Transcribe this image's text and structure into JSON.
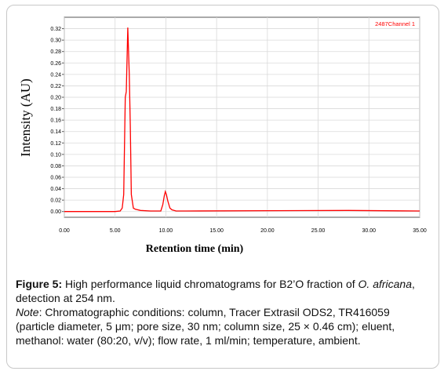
{
  "chart_data": {
    "type": "line",
    "xlabel": "Retention time (min)",
    "ylabel": "Intensity (AU)",
    "xlim": [
      0,
      35
    ],
    "ylim": [
      -0.01,
      0.34
    ],
    "x_ticks": [
      "0.00",
      "5.00",
      "10.00",
      "15.00",
      "20.00",
      "25.00",
      "30.00",
      "35.00"
    ],
    "x_tick_values": [
      0,
      5,
      10,
      15,
      20,
      25,
      30,
      35
    ],
    "y_ticks": [
      "0.00",
      "0.02",
      "0.04",
      "0.06",
      "0.08",
      "0.10",
      "0.12",
      "0.14",
      "0.16",
      "0.18",
      "0.20",
      "0.22",
      "0.24",
      "0.26",
      "0.28",
      "0.30",
      "0.32"
    ],
    "y_tick_values": [
      0,
      0.02,
      0.04,
      0.06,
      0.08,
      0.1,
      0.12,
      0.14,
      0.16,
      0.18,
      0.2,
      0.22,
      0.24,
      0.26,
      0.28,
      0.3,
      0.32
    ],
    "grid": true,
    "legend_position": "top-right",
    "series": [
      {
        "name": "2487Channel 1",
        "color": "#ff0000",
        "x": [
          0,
          5.0,
          5.5,
          5.7,
          5.85,
          6.0,
          6.1,
          6.25,
          6.4,
          6.5,
          6.6,
          6.8,
          7.0,
          7.5,
          8.5,
          9.5,
          9.7,
          9.85,
          9.95,
          10.05,
          10.2,
          10.4,
          10.6,
          11.0,
          12.0,
          20.0,
          28.0,
          35.0
        ],
        "y": [
          0.0,
          0.0,
          0.001,
          0.006,
          0.03,
          0.2,
          0.21,
          0.322,
          0.24,
          0.15,
          0.03,
          0.006,
          0.004,
          0.002,
          0.001,
          0.001,
          0.012,
          0.028,
          0.035,
          0.03,
          0.018,
          0.006,
          0.003,
          0.001,
          0.001,
          0.0015,
          0.002,
          0.001
        ]
      }
    ]
  },
  "caption": {
    "figure_label": "Figure 5:",
    "line1_text": " High performance liquid chromatograms for B2’O fraction of ",
    "species_genus": "O.",
    "species_name": "africana",
    "line2_text": ", detection at 254 nm.",
    "note_label": "Note",
    "note_text": ": Chromatographic conditions: column, Tracer Extrasil ODS2, TR416059 (particle diameter, 5 μm; pore size, 30 nm; column size, 25 × 0.46 cm); eluent, methanol: water (80:20, v/v); flow rate, 1 ml/min; temperature, ambient."
  }
}
